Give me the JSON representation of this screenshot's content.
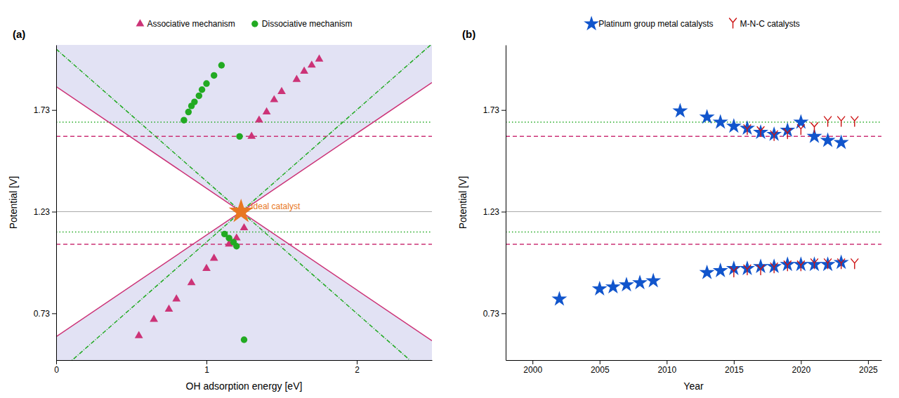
{
  "chart_data": [
    {
      "type": "scatter",
      "title": "(a)",
      "xlabel": "OH adsorption energy [eV]",
      "ylabel": "Potential [V]",
      "xlim": [
        0,
        2.5
      ],
      "ylim": [
        0.5,
        2.05
      ],
      "xticks": [
        0,
        1,
        2
      ],
      "yticks": [
        0.73,
        1.23,
        1.73
      ],
      "legend": "top",
      "series": [
        {
          "name": "Associative mechanism",
          "color": "#cc3377",
          "marker": "triangle",
          "x": [
            0.55,
            0.65,
            0.75,
            0.8,
            0.9,
            1.0,
            1.05,
            1.15,
            1.2,
            1.25,
            1.3,
            1.35,
            1.4,
            1.45,
            1.5,
            1.6,
            1.65,
            1.7,
            1.75
          ],
          "values": [
            0.62,
            0.7,
            0.75,
            0.8,
            0.88,
            0.95,
            1.0,
            1.07,
            1.1,
            1.15,
            1.6,
            1.68,
            1.72,
            1.78,
            1.82,
            1.88,
            1.92,
            1.95,
            1.98
          ]
        },
        {
          "name": "Dissociative mechanism",
          "color": "#22aa22",
          "marker": "circle",
          "x": [
            0.85,
            0.88,
            0.9,
            0.92,
            0.95,
            0.97,
            1.0,
            1.05,
            1.1,
            1.12,
            1.15,
            1.18,
            1.2,
            1.22,
            1.25
          ],
          "values": [
            1.68,
            1.72,
            1.75,
            1.77,
            1.8,
            1.83,
            1.86,
            1.9,
            1.95,
            1.12,
            1.1,
            1.08,
            1.06,
            1.6,
            0.6
          ]
        }
      ],
      "reference_lines": [
        {
          "y": 1.23,
          "color": "#aaaaaa",
          "line_style": "solid"
        },
        {
          "y": 1.67,
          "color": "#22aa22",
          "line_style": "dotted"
        },
        {
          "y": 1.13,
          "color": "#22aa22",
          "line_style": "dotted"
        },
        {
          "y": 1.6,
          "color": "#cc3377",
          "line_style": "dashed"
        },
        {
          "y": 1.07,
          "color": "#cc3377",
          "line_style": "dashed"
        }
      ],
      "guide_lines": [
        {
          "x": 1.23,
          "y": 1.23,
          "slope": 0.5,
          "color": "#cc3377",
          "line_style": "solid",
          "fill": "#d8d8f0"
        },
        {
          "x": 1.23,
          "y": 1.23,
          "slope": 0.65,
          "color": "#22aa22",
          "line_style": "dashdot"
        }
      ],
      "annotations": [
        {
          "text": "Ideal catalyst",
          "x": 1.23,
          "y": 1.23,
          "color": "#e87722",
          "marker": "star"
        }
      ]
    },
    {
      "type": "scatter",
      "title": "(b)",
      "xlabel": "Year",
      "ylabel": "Potential [V]",
      "xlim": [
        1998,
        2026
      ],
      "ylim": [
        0.5,
        2.05
      ],
      "xticks": [
        2000,
        2005,
        2010,
        2015,
        2020,
        2025
      ],
      "yticks": [
        0.73,
        1.23,
        1.73
      ],
      "legend": "top",
      "series": [
        {
          "name": "Platinum group metal catalysts",
          "color": "#1155cc",
          "marker": "star",
          "x": [
            2002,
            2005,
            2006,
            2007,
            2008,
            2009,
            2011,
            2013,
            2014,
            2015,
            2016,
            2017,
            2018,
            2019,
            2020,
            2021,
            2022,
            2023,
            2013,
            2014,
            2015,
            2016,
            2017,
            2018,
            2019,
            2020,
            2021,
            2022,
            2023
          ],
          "values": [
            0.8,
            0.85,
            0.86,
            0.87,
            0.88,
            0.89,
            1.725,
            1.695,
            1.67,
            1.65,
            1.64,
            1.62,
            1.61,
            1.63,
            1.67,
            1.6,
            1.58,
            1.57,
            0.93,
            0.94,
            0.95,
            0.95,
            0.96,
            0.96,
            0.97,
            0.97,
            0.97,
            0.97,
            0.98
          ]
        },
        {
          "name": "M-N-C catalysts",
          "color": "#cc1111",
          "marker": "y",
          "x": [
            2016,
            2017,
            2018,
            2019,
            2020,
            2021,
            2022,
            2023,
            2024,
            2015,
            2016,
            2017,
            2018,
            2019,
            2020,
            2021,
            2022,
            2023,
            2024
          ],
          "values": [
            1.63,
            1.62,
            1.6,
            1.61,
            1.63,
            1.64,
            1.67,
            1.67,
            1.67,
            0.93,
            0.94,
            0.94,
            0.95,
            0.96,
            0.96,
            0.97,
            0.97,
            0.97,
            0.97
          ]
        }
      ],
      "reference_lines": [
        {
          "y": 1.23,
          "color": "#aaaaaa",
          "line_style": "solid"
        },
        {
          "y": 1.67,
          "color": "#22aa22",
          "line_style": "dotted"
        },
        {
          "y": 1.13,
          "color": "#22aa22",
          "line_style": "dotted"
        },
        {
          "y": 1.6,
          "color": "#cc3377",
          "line_style": "dashed"
        },
        {
          "y": 1.07,
          "color": "#cc3377",
          "line_style": "dashed"
        }
      ]
    }
  ]
}
